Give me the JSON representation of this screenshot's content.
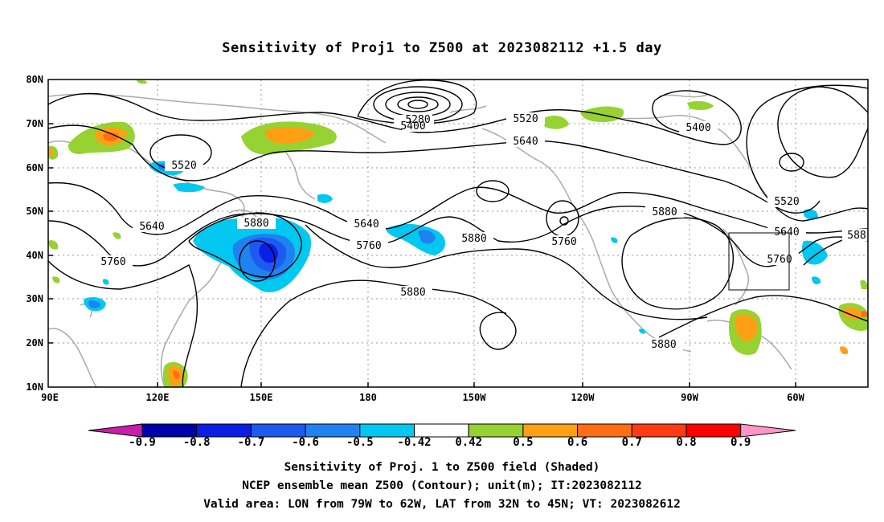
{
  "title": "Sensitivity of Proj1 to Z500 at 2023082112 +1.5 day",
  "map": {
    "lat_labels": [
      "80N",
      "70N",
      "60N",
      "50N",
      "40N",
      "30N",
      "20N",
      "10N"
    ],
    "lon_labels": [
      "90E",
      "120E",
      "150E",
      "180",
      "150W",
      "120W",
      "90W",
      "60W"
    ],
    "contour_labels": [
      {
        "text": "5280"
      },
      {
        "text": "5400"
      },
      {
        "text": "5520"
      },
      {
        "text": "5400"
      },
      {
        "text": "5520"
      },
      {
        "text": "5640"
      },
      {
        "text": "5520"
      },
      {
        "text": "5640"
      },
      {
        "text": "5880"
      },
      {
        "text": "5640"
      },
      {
        "text": "5760"
      },
      {
        "text": "5880"
      },
      {
        "text": "5760"
      },
      {
        "text": "5880"
      },
      {
        "text": "5760"
      },
      {
        "text": "5640"
      },
      {
        "text": "5880"
      },
      {
        "text": "5880"
      },
      {
        "text": "5760"
      },
      {
        "text": "588"
      }
    ],
    "valid_box": {
      "lon_from": "79W",
      "lon_to": "62W",
      "lat_from": "32N",
      "lat_to": "45N"
    }
  },
  "colorbar": {
    "labels": [
      "-0.9",
      "-0.8",
      "-0.7",
      "-0.6",
      "-0.5",
      "-0.42",
      "0.42",
      "0.5",
      "0.6",
      "0.7",
      "0.8",
      "0.9"
    ],
    "colors": [
      "#0000aa",
      "#0a1ee6",
      "#1e5af0",
      "#1e82f0",
      "#00c8f0",
      "#ffffff",
      "#96d232",
      "#ffa014",
      "#ff6e14",
      "#ff3c14",
      "#ff0000"
    ],
    "low_extend_color": "#c81eaa",
    "high_extend_color": "#ff96c8"
  },
  "captions": [
    "Sensitivity of Proj. 1 to Z500 field (Shaded)",
    "NCEP ensemble mean Z500 (Contour); unit(m); IT:2023082112",
    "Valid area: LON from 79W to 62W, LAT from 32N to 45N; VT: 2023082612"
  ]
}
